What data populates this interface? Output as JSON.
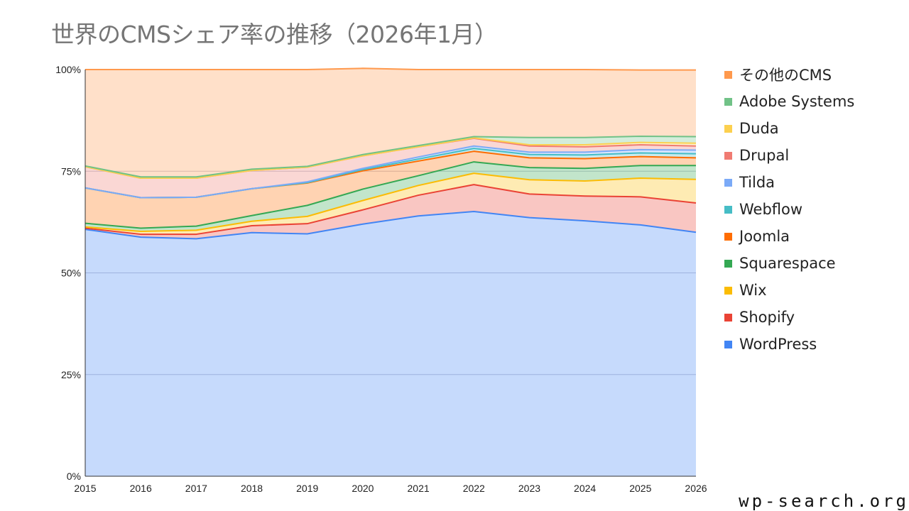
{
  "chart_data": {
    "type": "area",
    "stacked": true,
    "percent": true,
    "title": "世界のCMSシェア率の推移（2026年1月）",
    "x": [
      "2015",
      "2016",
      "2017",
      "2018",
      "2019",
      "2020",
      "2021",
      "2022",
      "2023",
      "2024",
      "2025",
      "2026"
    ],
    "y_ticks": [
      "0%",
      "25%",
      "50%",
      "75%",
      "100%"
    ],
    "ylim": [
      0,
      100
    ],
    "grid": true,
    "legend_position": "right",
    "series": [
      {
        "name": "WordPress",
        "color": "#4285f4",
        "values": [
          60.7,
          58.8,
          58.4,
          59.9,
          59.6,
          62.0,
          64.0,
          65.1,
          63.6,
          62.8,
          61.8,
          60.0
        ]
      },
      {
        "name": "Shopify",
        "color": "#ea4335",
        "values": [
          0.3,
          0.7,
          1.1,
          1.7,
          2.5,
          3.5,
          5.1,
          6.6,
          5.8,
          6.1,
          6.9,
          7.2
        ]
      },
      {
        "name": "Wix",
        "color": "#fbbc04",
        "values": [
          0.3,
          0.7,
          1.0,
          1.1,
          1.8,
          2.3,
          2.4,
          2.8,
          3.5,
          3.7,
          4.6,
          5.8
        ]
      },
      {
        "name": "Squarespace",
        "color": "#34a853",
        "values": [
          0.9,
          0.8,
          1.0,
          1.4,
          2.7,
          2.8,
          2.4,
          2.8,
          3.0,
          3.1,
          3.1,
          3.4
        ]
      },
      {
        "name": "Joomla",
        "color": "#ff6d01",
        "values": [
          8.7,
          7.5,
          7.1,
          6.6,
          5.5,
          4.5,
          3.6,
          2.6,
          2.4,
          2.4,
          2.2,
          1.9
        ]
      },
      {
        "name": "Webflow",
        "color": "#46bdc6",
        "values": [
          0.0,
          0.0,
          0.0,
          0.0,
          0.1,
          0.3,
          0.5,
          0.7,
          0.8,
          0.9,
          0.9,
          1.0
        ]
      },
      {
        "name": "Tilda",
        "color": "#7baaf7",
        "values": [
          0.0,
          0.0,
          0.0,
          0.0,
          0.2,
          0.3,
          0.5,
          0.6,
          0.6,
          0.7,
          0.8,
          0.9
        ]
      },
      {
        "name": "Drupal",
        "color": "#f07b72",
        "values": [
          5.2,
          4.8,
          4.7,
          4.5,
          3.6,
          3.1,
          2.5,
          1.9,
          1.5,
          1.3,
          1.2,
          1.0
        ]
      },
      {
        "name": "Duda",
        "color": "#fcd04f",
        "values": [
          0.0,
          0.0,
          0.0,
          0.0,
          0.0,
          0.0,
          0.0,
          0.1,
          0.3,
          0.5,
          0.6,
          0.7
        ]
      },
      {
        "name": "Adobe Systems",
        "color": "#71c287",
        "values": [
          0.2,
          0.3,
          0.3,
          0.3,
          0.2,
          0.3,
          0.3,
          0.3,
          1.8,
          1.8,
          1.5,
          1.6
        ]
      },
      {
        "name": "その他のCMS",
        "color": "#ff994d",
        "values": [
          23.7,
          26.4,
          26.4,
          24.5,
          23.8,
          21.2,
          18.7,
          16.5,
          16.7,
          16.7,
          16.3,
          16.4
        ]
      }
    ]
  },
  "watermark": "wp-search.org"
}
